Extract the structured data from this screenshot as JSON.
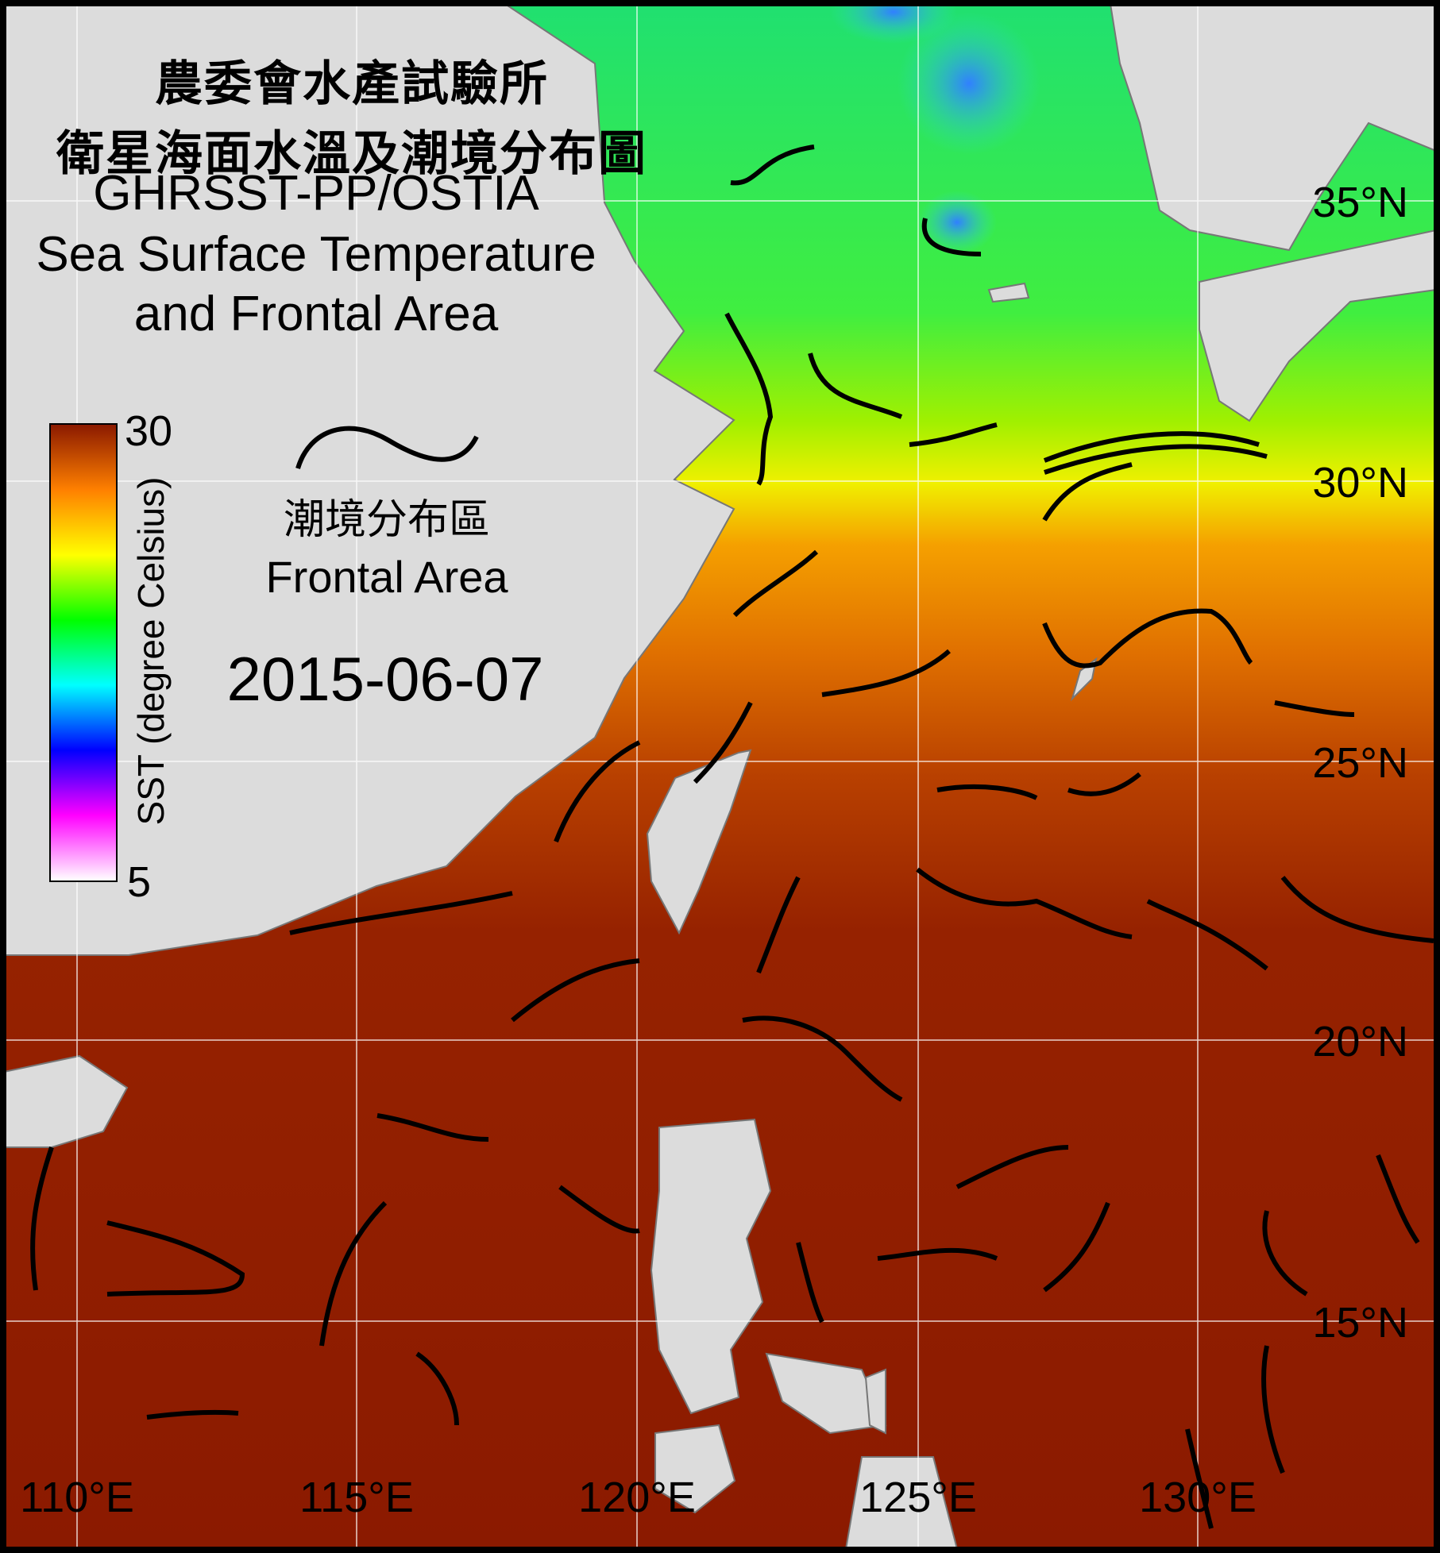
{
  "title": {
    "line1": "農委會水產試驗所",
    "line2": "衛星海面水溫及潮境分布圖",
    "line3": "GHRSST-PP/OSTIA",
    "line4": "Sea Surface Temperature",
    "line5": "and Frontal Area"
  },
  "colorbar": {
    "max_label": "30",
    "min_label": "5",
    "axis_label": "SST (degree Celsius)",
    "colors": [
      "#ffffff",
      "#ff00ff",
      "#0000ff",
      "#00ffff",
      "#00ff00",
      "#ffff00",
      "#ff8000",
      "#8b1a00"
    ]
  },
  "legend": {
    "label_zh": "潮境分布區",
    "label_en": "Frontal Area",
    "symbol": "black-wavy-line"
  },
  "date": "2015-06-07",
  "longitude_labels": [
    "110°E",
    "115°E",
    "120°E",
    "125°E",
    "130°E"
  ],
  "latitude_labels": [
    "35°N",
    "30°N",
    "25°N",
    "20°N",
    "15°N"
  ],
  "colors": {
    "land": "#dcdcdc",
    "front": "#000000",
    "grid": "#ffffff"
  }
}
